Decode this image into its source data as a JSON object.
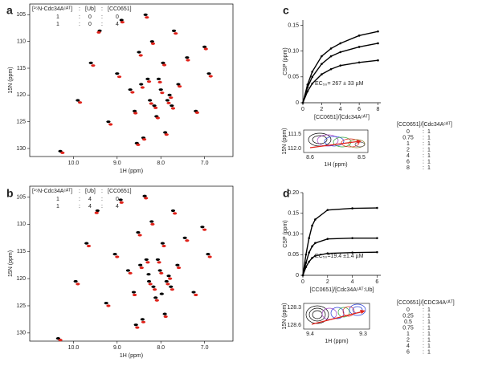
{
  "chart_data": [
    {
      "type": "scatter",
      "panel": "a",
      "xlabel": "1H (ppm)",
      "ylabel": "15N (ppm)",
      "xlim": [
        11.0,
        6.35
      ],
      "ylim": [
        131.5,
        103
      ],
      "xticks": [
        {
          "value": 10,
          "label": "10.0"
        },
        {
          "value": 9,
          "label": "9.0"
        },
        {
          "value": 8,
          "label": "8.0"
        },
        {
          "value": 7,
          "label": "7.0"
        }
      ],
      "yticks": [
        105,
        110,
        115,
        120,
        125,
        130
      ],
      "legend": {
        "header": [
          "[¹⁵N-Cdc34Aᶜᴬᵀ]",
          ":",
          "[Ub]",
          ":",
          "[CC0651]"
        ],
        "rows": [
          [
            "1",
            ":",
            "0",
            ":",
            "0"
          ],
          [
            "1",
            ":",
            "0",
            ":",
            "4"
          ]
        ]
      },
      "series": [
        {
          "color": "#000000",
          "x": [
            10.3,
            9.9,
            9.6,
            9.4,
            9.2,
            9.0,
            8.9,
            8.7,
            8.6,
            8.5,
            8.4,
            8.3,
            8.25,
            8.2,
            8.1,
            8.0,
            7.95,
            7.9,
            7.8,
            7.7,
            7.6,
            7.4,
            7.2,
            7.0,
            6.9,
            8.35,
            8.15,
            8.55,
            8.05,
            7.85,
            8.45,
            7.75
          ],
          "y": [
            130.5,
            121,
            114,
            108,
            125,
            116,
            106,
            119,
            123,
            112,
            128,
            117,
            121,
            110,
            124,
            119,
            114,
            127,
            120,
            108,
            118,
            113,
            123,
            111,
            116,
            105,
            122,
            129,
            117,
            121,
            118,
            122
          ]
        },
        {
          "color": "#e0231b",
          "x": [
            10.25,
            9.85,
            9.55,
            9.42,
            9.15,
            8.95,
            8.88,
            8.65,
            8.58,
            8.46,
            8.38,
            8.27,
            8.22,
            8.18,
            8.07,
            7.97,
            7.92,
            7.87,
            7.77,
            7.66,
            7.57,
            7.38,
            7.17,
            6.97,
            6.86,
            8.32,
            8.12,
            8.52,
            8.02,
            7.82,
            8.42,
            7.72
          ],
          "y": [
            130.8,
            121.4,
            114.5,
            108.3,
            125.5,
            116.6,
            106.4,
            119.5,
            123.4,
            112.6,
            128.3,
            117.5,
            121.6,
            110.4,
            124.3,
            119.6,
            114.4,
            127.4,
            120.5,
            108.5,
            118.4,
            113.5,
            123.3,
            111.4,
            116.5,
            105.5,
            122.4,
            129.3,
            117.6,
            121.5,
            118.6,
            122.5
          ]
        }
      ]
    },
    {
      "type": "scatter",
      "panel": "b",
      "xlabel": "1H (ppm)",
      "ylabel": "15N (ppm)",
      "xlim": [
        11.0,
        6.35
      ],
      "ylim": [
        131.5,
        103
      ],
      "xticks": [
        {
          "value": 10,
          "label": "10.0"
        },
        {
          "value": 9,
          "label": "9.0"
        },
        {
          "value": 8,
          "label": "8.0"
        },
        {
          "value": 7,
          "label": "7.0"
        }
      ],
      "yticks": [
        105,
        110,
        115,
        120,
        125,
        130
      ],
      "legend": {
        "header": [
          "[¹⁵N-Cdc34Aᶜᴬᵀ]",
          ":",
          "[Ub]",
          ":",
          "[CC0651]"
        ],
        "rows": [
          [
            "1",
            ":",
            "4",
            ":",
            "0"
          ],
          [
            "1",
            ":",
            "4",
            ":",
            "4"
          ]
        ]
      },
      "series": [
        {
          "color": "#000000",
          "x": [
            10.35,
            9.95,
            9.7,
            9.45,
            9.25,
            9.05,
            8.92,
            8.75,
            8.62,
            8.52,
            8.42,
            8.33,
            8.27,
            8.21,
            8.12,
            8.02,
            7.96,
            7.91,
            7.82,
            7.72,
            7.62,
            7.45,
            7.25,
            7.05,
            6.92,
            8.37,
            8.17,
            8.57,
            8.07,
            7.87,
            8.47,
            7.77,
            8.28,
            7.98
          ],
          "y": [
            131,
            120.5,
            113.5,
            107.5,
            124.5,
            115.5,
            105.5,
            118.5,
            122.5,
            111.5,
            127.5,
            116.5,
            120.5,
            109.5,
            123.5,
            118.5,
            113.5,
            126.5,
            119.5,
            107.5,
            117.5,
            112.5,
            122.5,
            110.5,
            115.5,
            104.8,
            121.5,
            128.5,
            116.5,
            120.5,
            117.5,
            121.5,
            119.2,
            122.8
          ]
        },
        {
          "color": "#e0231b",
          "x": [
            10.3,
            9.9,
            9.65,
            9.47,
            9.2,
            9.0,
            8.9,
            8.7,
            8.6,
            8.48,
            8.4,
            8.3,
            8.24,
            8.19,
            8.09,
            7.99,
            7.93,
            7.89,
            7.79,
            7.68,
            7.59,
            7.4,
            7.2,
            7.0,
            6.88,
            8.34,
            8.14,
            8.54,
            8.04,
            7.84,
            8.44,
            7.74
          ],
          "y": [
            131.3,
            121,
            114,
            107.9,
            125,
            116,
            106,
            119,
            123,
            112,
            128,
            117,
            121,
            110,
            124,
            119,
            114,
            127,
            120,
            108,
            118,
            113,
            123,
            111,
            116,
            105.2,
            122,
            129,
            117,
            121,
            118,
            122
          ]
        }
      ]
    },
    {
      "type": "line",
      "panel": "c",
      "xlabel": "[CC0651]/[Cdc34Aᶜᴬᵀ]",
      "ylabel": "CSP (ppm)",
      "annotation": "EC₅₀= 267 ± 33 µM",
      "xlim": [
        0,
        8.3
      ],
      "ylim": [
        0,
        0.16
      ],
      "xticks": [
        0,
        2,
        4,
        6,
        8
      ],
      "yticks": [
        0,
        0.05,
        {
          "value": 0.1,
          "label": "0.10"
        },
        0.15
      ],
      "x": [
        0,
        0.5,
        1,
        2,
        3,
        4,
        6,
        8
      ],
      "series": [
        {
          "color": "#000000",
          "values": [
            0,
            0.035,
            0.06,
            0.09,
            0.105,
            0.115,
            0.13,
            0.138
          ]
        },
        {
          "color": "#000000",
          "values": [
            0,
            0.03,
            0.05,
            0.075,
            0.09,
            0.098,
            0.108,
            0.115
          ]
        },
        {
          "color": "#000000",
          "values": [
            0,
            0.022,
            0.037,
            0.055,
            0.065,
            0.072,
            0.078,
            0.082
          ]
        }
      ],
      "inset": {
        "xlabel": "1H (ppm)",
        "ylabel": "15N (ppm)",
        "yticks": [
          "111.5",
          "112.0"
        ],
        "xticks": [
          "8.6",
          "8.5"
        ]
      },
      "legend": {
        "title": "[CC0651]/[Cdc34Aᶜᴬᵀ]",
        "rows": [
          {
            "color": "#000000",
            "text": [
              "0",
              ":",
              "1"
            ]
          },
          {
            "color": "#a23fc4",
            "text": [
              "0.75",
              ":",
              "1"
            ]
          },
          {
            "color": "#2a3fd8",
            "text": [
              "1",
              ":",
              "1"
            ]
          },
          {
            "color": "#2fa83a",
            "text": [
              "2",
              ":",
              "1"
            ]
          },
          {
            "color": "#e0231b",
            "text": [
              "4",
              ":",
              "1"
            ]
          },
          {
            "color": "#555555",
            "text": [
              "6",
              ":",
              "1"
            ]
          },
          {
            "color": "#000000",
            "text": [
              "8",
              ":",
              "1"
            ]
          }
        ]
      }
    },
    {
      "type": "line",
      "panel": "d",
      "xlabel": "[CC0651]/[Cdc34Aᶜᴬᵀ:Ub]",
      "ylabel": "CSP (ppm)",
      "annotation": "EC₅₀=19.4 ±1.4 µM",
      "xlim": [
        0,
        6.3
      ],
      "ylim": [
        0,
        0.2
      ],
      "xticks": [
        0,
        2,
        4,
        6
      ],
      "yticks": [
        0,
        0.05,
        {
          "value": 0.1,
          "label": "0.10"
        },
        0.15,
        {
          "value": 0.2,
          "label": "0.20"
        }
      ],
      "x": [
        0,
        0.25,
        0.5,
        0.75,
        1,
        2,
        4,
        6
      ],
      "series": [
        {
          "color": "#000000",
          "values": [
            0,
            0.05,
            0.09,
            0.12,
            0.135,
            0.158,
            0.162,
            0.163
          ]
        },
        {
          "color": "#000000",
          "values": [
            0,
            0.03,
            0.055,
            0.07,
            0.078,
            0.088,
            0.09,
            0.09
          ]
        },
        {
          "color": "#000000",
          "values": [
            0,
            0.02,
            0.033,
            0.042,
            0.047,
            0.053,
            0.055,
            0.056
          ]
        }
      ],
      "inset": {
        "xlabel": "1H (ppm)",
        "ylabel": "15N (ppm)",
        "yticks": [
          "128.3",
          "128.6"
        ],
        "xticks": [
          "9.4",
          "9.3"
        ]
      },
      "legend": {
        "title": "[CC0651]/[CDC34Aᶜᴬᵀ]",
        "rows": [
          {
            "color": "#000000",
            "text": [
              "0",
              ":",
              "1"
            ]
          },
          {
            "color": "#a23fc4",
            "text": [
              "0.25",
              ":",
              "1"
            ]
          },
          {
            "color": "#2a3fd8",
            "text": [
              "0.5",
              ":",
              "1"
            ]
          },
          {
            "color": "#2fa83a",
            "text": [
              "0.75",
              ":",
              "1"
            ]
          },
          {
            "color": "#e0231b",
            "text": [
              "1",
              ":",
              "1"
            ]
          },
          {
            "color": "#8a4fb0",
            "text": [
              "2",
              ":",
              "1"
            ]
          },
          {
            "color": "#333333",
            "text": [
              "4",
              ":",
              "1"
            ]
          },
          {
            "color": "#555555",
            "text": [
              "6",
              ":",
              "1"
            ]
          }
        ]
      }
    }
  ]
}
